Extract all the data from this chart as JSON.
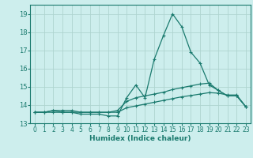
{
  "x": [
    0,
    1,
    2,
    3,
    4,
    5,
    6,
    7,
    8,
    9,
    10,
    11,
    12,
    13,
    14,
    15,
    16,
    17,
    18,
    19,
    20,
    21,
    22,
    23
  ],
  "line1": [
    13.6,
    13.6,
    13.7,
    13.6,
    13.6,
    13.5,
    13.5,
    13.5,
    13.4,
    13.4,
    14.4,
    15.1,
    14.4,
    16.5,
    17.8,
    19.0,
    18.3,
    16.9,
    16.3,
    15.1,
    14.8,
    14.5,
    14.5,
    13.9
  ],
  "line2": [
    13.6,
    13.6,
    13.7,
    13.7,
    13.7,
    13.6,
    13.6,
    13.6,
    13.6,
    13.7,
    14.2,
    14.4,
    14.5,
    14.6,
    14.7,
    14.85,
    14.95,
    15.05,
    15.15,
    15.2,
    14.8,
    14.5,
    14.5,
    13.9
  ],
  "line3": [
    13.6,
    13.6,
    13.6,
    13.6,
    13.6,
    13.6,
    13.6,
    13.6,
    13.6,
    13.6,
    13.85,
    13.95,
    14.05,
    14.15,
    14.25,
    14.35,
    14.45,
    14.52,
    14.6,
    14.68,
    14.65,
    14.55,
    14.55,
    13.9
  ],
  "color": "#1a7a6e",
  "bg_color": "#cdeeed",
  "grid_color": "#aed4d0",
  "xlabel": "Humidex (Indice chaleur)",
  "ylim": [
    13,
    19.5
  ],
  "xlim": [
    -0.5,
    23.5
  ],
  "yticks": [
    13,
    14,
    15,
    16,
    17,
    18,
    19
  ],
  "xticks": [
    0,
    1,
    2,
    3,
    4,
    5,
    6,
    7,
    8,
    9,
    10,
    11,
    12,
    13,
    14,
    15,
    16,
    17,
    18,
    19,
    20,
    21,
    22,
    23
  ],
  "figsize": [
    3.2,
    2.0
  ],
  "dpi": 100
}
